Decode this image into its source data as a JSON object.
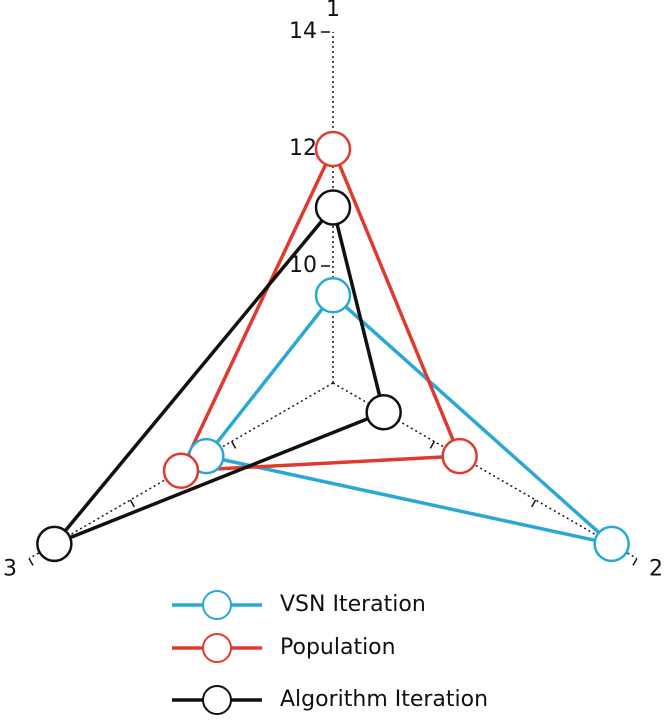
{
  "chart_data": {
    "type": "radar",
    "categories": [
      "1",
      "2",
      "3"
    ],
    "ylim": [
      8,
      14
    ],
    "yticks": [
      10,
      12,
      14
    ],
    "series": [
      {
        "name": "VSN Iteration",
        "color": "#29a8d6",
        "values": [
          9.5,
          13.5,
          10.5
        ]
      },
      {
        "name": "Population",
        "color": "#e03a2f",
        "values": [
          12,
          10.5,
          11
        ]
      },
      {
        "name": "Algorithm Iteration",
        "color": "#111111",
        "values": [
          11,
          9,
          13.5
        ]
      }
    ]
  }
}
